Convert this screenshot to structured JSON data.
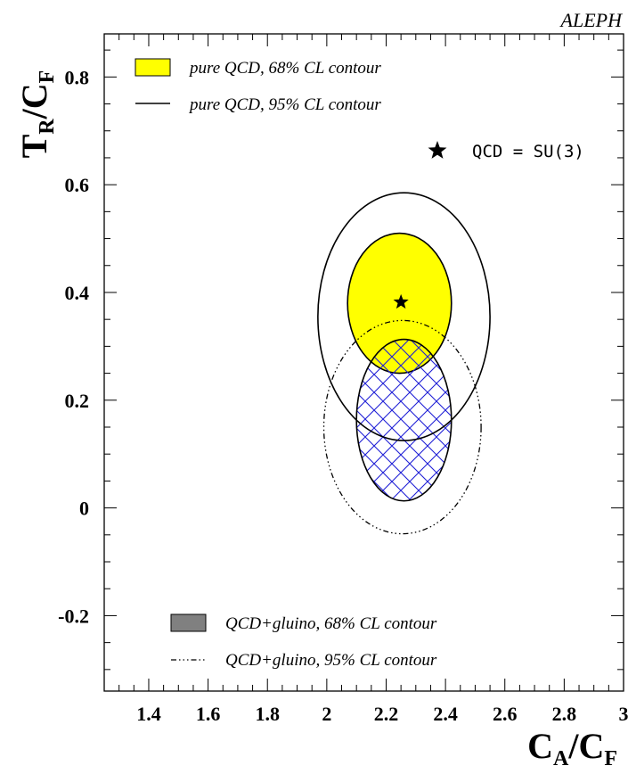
{
  "chart_data": {
    "type": "contour",
    "experiment_label": "ALEPH",
    "xlabel": {
      "main": "C",
      "sub1": "A",
      "slash": "/C",
      "sub2": "F"
    },
    "ylabel": {
      "main": "T",
      "sub1": "R",
      "slash": "/C",
      "sub2": "F"
    },
    "xlim": [
      1.25,
      3.0
    ],
    "ylim": [
      -0.34,
      0.88
    ],
    "x_ticks": [
      1.4,
      1.6,
      1.8,
      2.0,
      2.2,
      2.4,
      2.6,
      2.8,
      3.0
    ],
    "x_tick_labels": [
      "1.4",
      "1.6",
      "1.8",
      "2",
      "2.2",
      "2.4",
      "2.6",
      "2.8",
      "3"
    ],
    "y_ticks": [
      -0.2,
      0.0,
      0.2,
      0.4,
      0.6,
      0.8
    ],
    "y_tick_labels": [
      "-0.2",
      "0",
      "0.2",
      "0.4",
      "0.6",
      "0.8"
    ],
    "grid": false,
    "legend_top": [
      {
        "label": "pure QCD, 68% CL contour",
        "style": "filled",
        "color": "#ffff00"
      },
      {
        "label": "pure QCD, 95% CL contour",
        "style": "solid-line",
        "color": "#000000"
      }
    ],
    "legend_bottom": [
      {
        "label": "QCD+gluino, 68% CL contour",
        "style": "filled",
        "color": "#808080"
      },
      {
        "label": "QCD+gluino, 95% CL contour",
        "style": "dash-dot-line",
        "color": "#000000"
      }
    ],
    "marker_label": "QCD = SU(3)",
    "marker_point": {
      "x": 2.25,
      "y": 0.382
    },
    "series": [
      {
        "name": "pure QCD, 68% CL contour",
        "shape": "ellipse",
        "center": [
          2.245,
          0.38
        ],
        "semi_axes": [
          0.175,
          0.13
        ],
        "rotation_deg": 0,
        "fill": "#ffff00",
        "stroke": "solid"
      },
      {
        "name": "pure QCD, 95% CL contour",
        "shape": "ellipse",
        "center": [
          2.26,
          0.355
        ],
        "semi_axes": [
          0.29,
          0.23
        ],
        "rotation_deg": 0,
        "fill": "none",
        "stroke": "solid"
      },
      {
        "name": "QCD+gluino, 68% CL contour",
        "shape": "ellipse",
        "center": [
          2.26,
          0.163
        ],
        "semi_axes": [
          0.16,
          0.15
        ],
        "rotation_deg": 0,
        "fill": "hatch-blue",
        "stroke": "solid"
      },
      {
        "name": "QCD+gluino, 95% CL contour",
        "shape": "ellipse",
        "center": [
          2.255,
          0.15
        ],
        "semi_axes": [
          0.265,
          0.198
        ],
        "rotation_deg": 0,
        "fill": "none",
        "stroke": "dash-dot"
      }
    ],
    "colors": {
      "yellow_fill": "#ffff00",
      "hatch": "#1f1fd6",
      "gray_fill": "#808080",
      "line": "#000000"
    }
  }
}
